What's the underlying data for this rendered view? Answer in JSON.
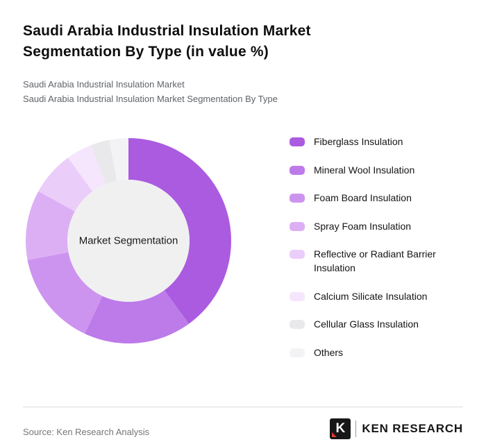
{
  "page": {
    "title": "Saudi Arabia Industrial Insulation Market Segmentation By Type (in value %)",
    "subtitle1": "Saudi Arabia Industrial Insulation Market",
    "subtitle2": "Saudi Arabia Industrial Insulation Market Segmentation By Type",
    "source": "Source: Ken Research Analysis",
    "logo": {
      "k": "K",
      "text": "KEN RESEARCH"
    }
  },
  "chart_data": {
    "type": "pie",
    "donut": true,
    "title": "Saudi Arabia Industrial Insulation Market Segmentation By Type (in value %)",
    "center_label": "Market Segmentation",
    "legend_position": "right",
    "start_angle_deg": 0,
    "direction": "clockwise",
    "categories": [
      "Fiberglass Insulation",
      "Mineral Wool Insulation",
      "Foam Board Insulation",
      "Spray Foam Insulation",
      "Reflective or Radiant Barrier Insulation",
      "Calcium Silicate Insulation",
      "Cellular Glass Insulation",
      "Others"
    ],
    "values": [
      40,
      17,
      15,
      11,
      7,
      4,
      3,
      3
    ],
    "values_note": "percent of total value, estimated from arc lengths; no numeric labels shown in image",
    "colors": [
      "#ab5be0",
      "#bd7ae9",
      "#cd94ef",
      "#dcaff5",
      "#ebcdf9",
      "#f5e6fd",
      "#e9e9eb",
      "#f3f3f5"
    ],
    "center_fill": "#f0f0f1"
  }
}
